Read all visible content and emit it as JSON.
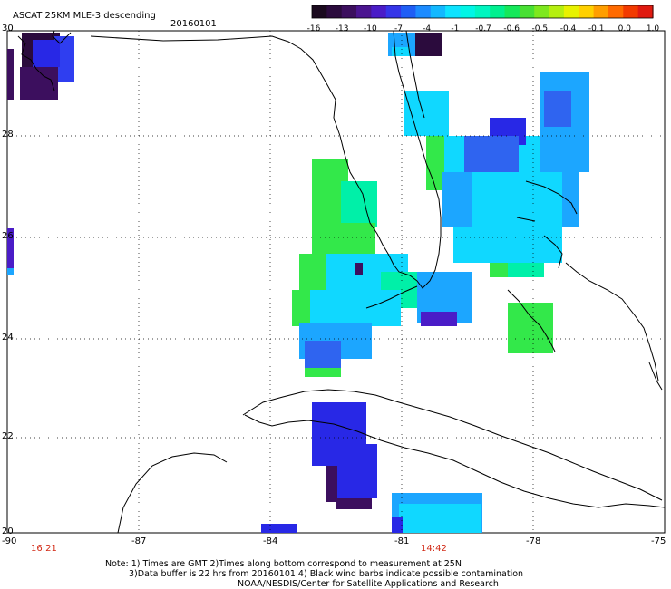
{
  "header": {
    "title": "ASCAT 25KM MLE-3 descending",
    "date": "20160101"
  },
  "colorbar": {
    "tick_labels": [
      "-16",
      "-13",
      "-10",
      "-7",
      "-4",
      "-1",
      "-0.7",
      "-0.6",
      "-0.5",
      "-0.4",
      "-0.1",
      "0.0",
      "1.0"
    ],
    "colors": [
      "#1a0a1e",
      "#2b0b3d",
      "#3c0f5e",
      "#4b1590",
      "#4a1cc7",
      "#3535e8",
      "#1f5ef5",
      "#1c8bff",
      "#12b8ff",
      "#0de3ff",
      "#00f5e6",
      "#00f5c0",
      "#00f08f",
      "#15e85a",
      "#48e033",
      "#7ee81e",
      "#b5ef10",
      "#e8f200",
      "#ffd000",
      "#ff9e00",
      "#ff6a00",
      "#f23a00",
      "#e01a10"
    ]
  },
  "axes": {
    "lat_labels": [
      "30",
      "28",
      "26",
      "24",
      "22",
      "20"
    ],
    "lon_labels": [
      "-90",
      "-87",
      "-84",
      "-81",
      "-78",
      "-75"
    ]
  },
  "times": {
    "left_time": "16:21",
    "right_time": "14:42"
  },
  "notes": {
    "line1": "Note: 1) Times are GMT 2)Times along bottom correspond to measurement at 25N",
    "line2": "3)Data buffer is 22 hrs from 20160101 4) Black wind barbs indicate possible contamination",
    "line3": "NOAA/NESDIS/Center for Satellite Applications and Research"
  },
  "colors": {
    "purple": "#3c0f5e",
    "darkpurple": "#2b0b3d",
    "blue": "#2828e6",
    "medblue": "#2f64f0",
    "lightblue": "#1ca6ff",
    "cyan": "#10d8ff",
    "aqua": "#00f0e0",
    "aquagreen": "#00f0a8",
    "green": "#33e84a",
    "time_red": "#d22a16"
  }
}
